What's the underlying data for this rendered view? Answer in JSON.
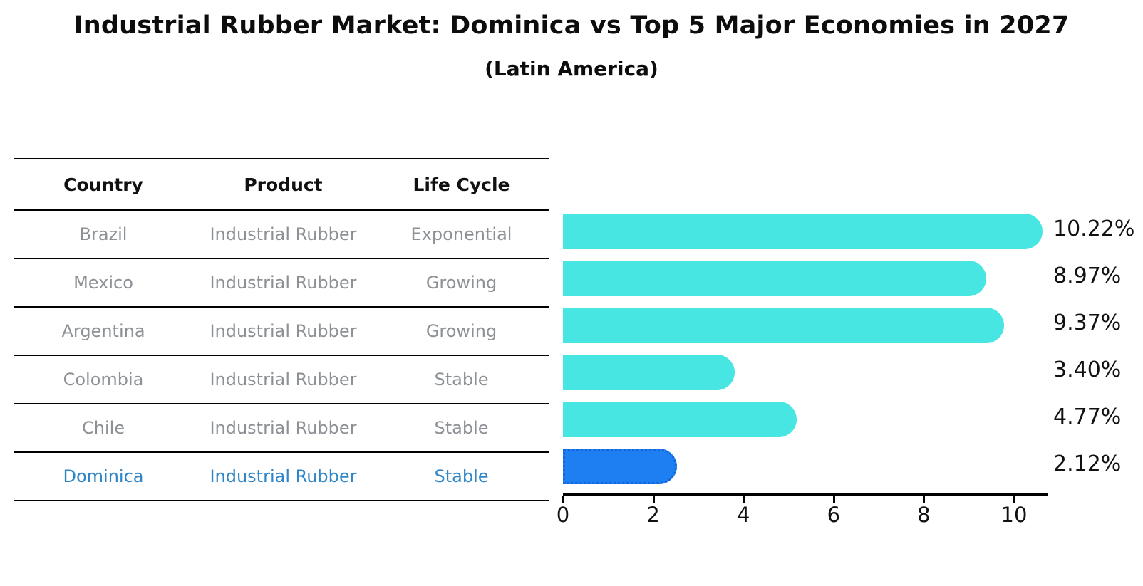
{
  "title": "Industrial Rubber Market: Dominica vs Top 5 Major Economies in 2027",
  "subtitle": "(Latin America)",
  "colors": {
    "bar_default": "#48e6e2",
    "bar_highlight": "#1e7ff2",
    "bar_highlight_border": "#1565dd",
    "highlight_text": "#2e86c8",
    "row_text": "#8d9196",
    "axis": "#000000"
  },
  "table": {
    "headers": [
      "Country",
      "Product",
      "Life Cycle"
    ],
    "rows": [
      {
        "country": "Brazil",
        "product": "Industrial Rubber",
        "life_cycle": "Exponential",
        "highlight": false
      },
      {
        "country": "Mexico",
        "product": "Industrial Rubber",
        "life_cycle": "Growing",
        "highlight": false
      },
      {
        "country": "Argentina",
        "product": "Industrial Rubber",
        "life_cycle": "Growing",
        "highlight": false
      },
      {
        "country": "Colombia",
        "product": "Industrial Rubber",
        "life_cycle": "Stable",
        "highlight": false
      },
      {
        "country": "Chile",
        "product": "Industrial Rubber",
        "life_cycle": "Stable",
        "highlight": false
      },
      {
        "country": "Dominica",
        "product": "Industrial Rubber",
        "life_cycle": "Stable",
        "highlight": true
      }
    ]
  },
  "chart_data": {
    "type": "bar",
    "orientation": "horizontal",
    "categories": [
      "Brazil",
      "Mexico",
      "Argentina",
      "Colombia",
      "Chile",
      "Dominica"
    ],
    "values": [
      10.22,
      8.97,
      9.37,
      3.4,
      4.77,
      2.12
    ],
    "value_labels": [
      "10.22%",
      "8.97%",
      "9.37%",
      "3.40%",
      "4.77%",
      "2.12%"
    ],
    "highlight_category": "Dominica",
    "title": "Industrial Rubber Market: Dominica vs Top 5 Major Economies in 2027 (Latin America)",
    "xlabel": "",
    "ylabel": "",
    "xticks": [
      0,
      2,
      4,
      6,
      8,
      10
    ],
    "xlim": [
      0,
      10.74
    ],
    "grid": false,
    "legend": false
  }
}
